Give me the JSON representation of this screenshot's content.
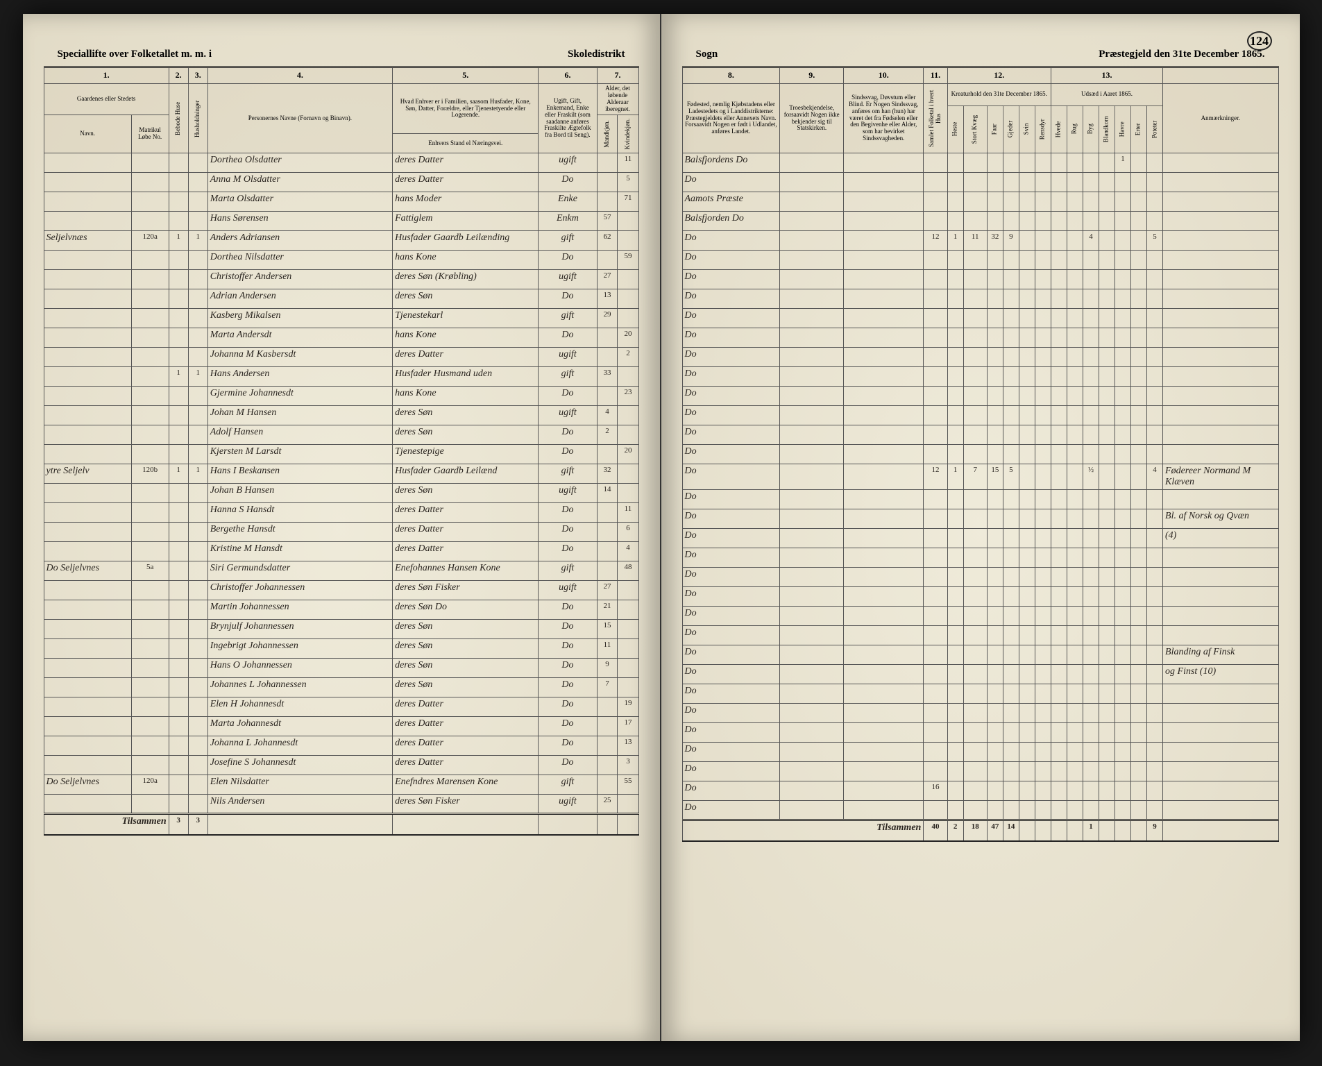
{
  "pageNumber": "124",
  "header": {
    "left1": "Speciallifte over Folketallet m. m. i",
    "left2": "Skoledistrikt",
    "right1": "Sogn",
    "right2": "Præstegjeld den 31te December 1865."
  },
  "leftColumns": {
    "numbers": [
      "1.",
      "2.",
      "3.",
      "4.",
      "5.",
      "6.",
      "7."
    ],
    "labels": {
      "c1": "Gaardenes eller Stedets",
      "c1b": "Navn.",
      "c1c": "Matrikul Løbe No.",
      "c2": "Bebode Huse",
      "c3": "Husholdninger",
      "c4": "Personernes Navne (Fornavn og Binavn).",
      "c5a": "Hvad Enhver er i Familien, saasom Husfader, Kone, Søn, Datter, Forældre, eller Tjenestetyende eller Logerende.",
      "c5b": "Enhvers Stand el Næringsvei.",
      "c6": "Ugift, Gift, Enkemand, Enke eller Fraskilt (som saadanne anføres Fraskilte Ægtefolk fra Bord til Seng).",
      "c7": "Alder, det løbende Alderaar iberegnet.",
      "c7a": "Mandkjøn.",
      "c7b": "Kvindekjøn."
    }
  },
  "rightColumns": {
    "numbers": [
      "8.",
      "9.",
      "10.",
      "11.",
      "12.",
      "13."
    ],
    "labels": {
      "c8": "Fødested, nemlig Kjøbstadens eller Ladestedets og i Landdistrikterne: Præstegjeldets eller Annexets Navn. Forsaavidt Nogen er født i Udlandet, anføres Landet.",
      "c9": "Troesbekjendelse, forsaavidt Nogen ikke bekjender sig til Statskirken.",
      "c10": "Sindssvag, Døvstum eller Blind. Er Nogen Sindssvag, anføres om han (hun) har været det fra Fødselen eller den Begivenhe eller Alder, som har bevirket Sindssvagheden.",
      "c11": "Samlet Folketal i hvert Hus",
      "c12": "Kreaturhold den 31te December 1865.",
      "c12s": [
        "Heste",
        "Stort Kvæg",
        "Faar",
        "Gjeder",
        "Svin",
        "Rensdyr"
      ],
      "c13": "Udsæd i Aaret 1865.",
      "c13s": [
        "Hvede",
        "Rug",
        "Byg",
        "Blandkorn",
        "Havre",
        "Erter",
        "Poteter"
      ],
      "c14": "Anmærkninger."
    }
  },
  "rows": [
    {
      "farm": "",
      "mn": "",
      "bh": "",
      "hh": "",
      "name": "Dorthea Olsdatter",
      "rel": "deres Datter",
      "ms": "ugift",
      "mk": "",
      "kk": "11",
      "birth": "Balsfjordens Do",
      "c11": "",
      "kr": [
        "",
        "",
        "",
        "",
        "",
        ""
      ],
      "ud": [
        "",
        "",
        "",
        "",
        "1",
        "",
        ""
      ],
      "rem": ""
    },
    {
      "farm": "",
      "mn": "",
      "bh": "",
      "hh": "",
      "name": "Anna M Olsdatter",
      "rel": "deres Datter",
      "ms": "Do",
      "mk": "",
      "kk": "5",
      "birth": "Do",
      "c11": "",
      "kr": [
        "",
        "",
        "",
        "",
        "",
        ""
      ],
      "ud": [
        "",
        "",
        "",
        "",
        "",
        "",
        ""
      ],
      "rem": ""
    },
    {
      "farm": "",
      "mn": "",
      "bh": "",
      "hh": "",
      "name": "Marta Olsdatter",
      "rel": "hans Moder",
      "ms": "Enke",
      "mk": "",
      "kk": "71",
      "birth": "Aamots Præste",
      "c11": "",
      "kr": [
        "",
        "",
        "",
        "",
        "",
        ""
      ],
      "ud": [
        "",
        "",
        "",
        "",
        "",
        "",
        ""
      ],
      "rem": ""
    },
    {
      "farm": "",
      "mn": "",
      "bh": "",
      "hh": "",
      "name": "Hans Sørensen",
      "rel": "Fattiglem",
      "ms": "Enkm",
      "mk": "57",
      "kk": "",
      "birth": "Balsfjorden Do",
      "c11": "",
      "kr": [
        "",
        "",
        "",
        "",
        "",
        ""
      ],
      "ud": [
        "",
        "",
        "",
        "",
        "",
        "",
        ""
      ],
      "rem": ""
    },
    {
      "farm": "Seljelvnæs",
      "mn": "120a",
      "bh": "1",
      "hh": "1",
      "name": "Anders Adriansen",
      "rel": "Husfader Gaardb Leilænding",
      "ms": "gift",
      "mk": "62",
      "kk": "",
      "birth": "Do",
      "c11": "12",
      "kr": [
        "1",
        "11",
        "32",
        "9",
        "",
        ""
      ],
      "ud": [
        "",
        "",
        "4",
        "",
        "",
        "",
        "5"
      ],
      "rem": ""
    },
    {
      "farm": "",
      "mn": "",
      "bh": "",
      "hh": "",
      "name": "Dorthea Nilsdatter",
      "rel": "hans Kone",
      "ms": "Do",
      "mk": "",
      "kk": "59",
      "birth": "Do",
      "c11": "",
      "kr": [
        "",
        "",
        "",
        "",
        "",
        ""
      ],
      "ud": [
        "",
        "",
        "",
        "",
        "",
        "",
        ""
      ],
      "rem": ""
    },
    {
      "farm": "",
      "mn": "",
      "bh": "",
      "hh": "",
      "name": "Christoffer Andersen",
      "rel": "deres Søn (Krøbling)",
      "ms": "ugift",
      "mk": "27",
      "kk": "",
      "birth": "Do",
      "c11": "",
      "kr": [
        "",
        "",
        "",
        "",
        "",
        ""
      ],
      "ud": [
        "",
        "",
        "",
        "",
        "",
        "",
        ""
      ],
      "rem": ""
    },
    {
      "farm": "",
      "mn": "",
      "bh": "",
      "hh": "",
      "name": "Adrian Andersen",
      "rel": "deres Søn",
      "ms": "Do",
      "mk": "13",
      "kk": "",
      "birth": "Do",
      "c11": "",
      "kr": [
        "",
        "",
        "",
        "",
        "",
        ""
      ],
      "ud": [
        "",
        "",
        "",
        "",
        "",
        "",
        ""
      ],
      "rem": ""
    },
    {
      "farm": "",
      "mn": "",
      "bh": "",
      "hh": "",
      "name": "Kasberg Mikalsen",
      "rel": "Tjenestekarl",
      "ms": "gift",
      "mk": "29",
      "kk": "",
      "birth": "Do",
      "c11": "",
      "kr": [
        "",
        "",
        "",
        "",
        "",
        ""
      ],
      "ud": [
        "",
        "",
        "",
        "",
        "",
        "",
        ""
      ],
      "rem": ""
    },
    {
      "farm": "",
      "mn": "",
      "bh": "",
      "hh": "",
      "name": "Marta Andersdt",
      "rel": "hans Kone",
      "ms": "Do",
      "mk": "",
      "kk": "20",
      "birth": "Do",
      "c11": "",
      "kr": [
        "",
        "",
        "",
        "",
        "",
        ""
      ],
      "ud": [
        "",
        "",
        "",
        "",
        "",
        "",
        ""
      ],
      "rem": ""
    },
    {
      "farm": "",
      "mn": "",
      "bh": "",
      "hh": "",
      "name": "Johanna M Kasbersdt",
      "rel": "deres Datter",
      "ms": "ugift",
      "mk": "",
      "kk": "2",
      "birth": "Do",
      "c11": "",
      "kr": [
        "",
        "",
        "",
        "",
        "",
        ""
      ],
      "ud": [
        "",
        "",
        "",
        "",
        "",
        "",
        ""
      ],
      "rem": ""
    },
    {
      "farm": "",
      "mn": "",
      "bh": "1",
      "hh": "1",
      "name": "Hans Andersen",
      "rel": "Husfader Husmand uden",
      "ms": "gift",
      "mk": "33",
      "kk": "",
      "birth": "Do",
      "c11": "",
      "kr": [
        "",
        "",
        "",
        "",
        "",
        ""
      ],
      "ud": [
        "",
        "",
        "",
        "",
        "",
        "",
        ""
      ],
      "rem": ""
    },
    {
      "farm": "",
      "mn": "",
      "bh": "",
      "hh": "",
      "name": "Gjermine Johannesdt",
      "rel": "hans Kone",
      "ms": "Do",
      "mk": "",
      "kk": "23",
      "birth": "Do",
      "c11": "",
      "kr": [
        "",
        "",
        "",
        "",
        "",
        ""
      ],
      "ud": [
        "",
        "",
        "",
        "",
        "",
        "",
        ""
      ],
      "rem": ""
    },
    {
      "farm": "",
      "mn": "",
      "bh": "",
      "hh": "",
      "name": "Johan M Hansen",
      "rel": "deres Søn",
      "ms": "ugift",
      "mk": "4",
      "kk": "",
      "birth": "Do",
      "c11": "",
      "kr": [
        "",
        "",
        "",
        "",
        "",
        ""
      ],
      "ud": [
        "",
        "",
        "",
        "",
        "",
        "",
        ""
      ],
      "rem": ""
    },
    {
      "farm": "",
      "mn": "",
      "bh": "",
      "hh": "",
      "name": "Adolf Hansen",
      "rel": "deres Søn",
      "ms": "Do",
      "mk": "2",
      "kk": "",
      "birth": "Do",
      "c11": "",
      "kr": [
        "",
        "",
        "",
        "",
        "",
        ""
      ],
      "ud": [
        "",
        "",
        "",
        "",
        "",
        "",
        ""
      ],
      "rem": ""
    },
    {
      "farm": "",
      "mn": "",
      "bh": "",
      "hh": "",
      "name": "Kjersten M Larsdt",
      "rel": "Tjenestepige",
      "ms": "Do",
      "mk": "",
      "kk": "20",
      "birth": "Do",
      "c11": "",
      "kr": [
        "",
        "",
        "",
        "",
        "",
        ""
      ],
      "ud": [
        "",
        "",
        "",
        "",
        "",
        "",
        ""
      ],
      "rem": ""
    },
    {
      "farm": "ytre Seljelv",
      "mn": "120b",
      "bh": "1",
      "hh": "1",
      "name": "Hans I Beskansen",
      "rel": "Husfader Gaardb Leilænd",
      "ms": "gift",
      "mk": "32",
      "kk": "",
      "birth": "Do",
      "c11": "12",
      "kr": [
        "1",
        "7",
        "15",
        "5",
        "",
        ""
      ],
      "ud": [
        "",
        "",
        "½",
        "",
        "",
        "",
        "4"
      ],
      "rem": "Fødereer Normand M Klæven"
    },
    {
      "farm": "",
      "mn": "",
      "bh": "",
      "hh": "",
      "name": "Johan B Hansen",
      "rel": "deres Søn",
      "ms": "ugift",
      "mk": "14",
      "kk": "",
      "birth": "Do",
      "c11": "",
      "kr": [
        "",
        "",
        "",
        "",
        "",
        ""
      ],
      "ud": [
        "",
        "",
        "",
        "",
        "",
        "",
        ""
      ],
      "rem": ""
    },
    {
      "farm": "",
      "mn": "",
      "bh": "",
      "hh": "",
      "name": "Hanna S Hansdt",
      "rel": "deres Datter",
      "ms": "Do",
      "mk": "",
      "kk": "11",
      "birth": "Do",
      "c11": "",
      "kr": [
        "",
        "",
        "",
        "",
        "",
        ""
      ],
      "ud": [
        "",
        "",
        "",
        "",
        "",
        "",
        ""
      ],
      "rem": "Bl. af Norsk og Qvæn"
    },
    {
      "farm": "",
      "mn": "",
      "bh": "",
      "hh": "",
      "name": "Bergethe Hansdt",
      "rel": "deres Datter",
      "ms": "Do",
      "mk": "",
      "kk": "6",
      "birth": "Do",
      "c11": "",
      "kr": [
        "",
        "",
        "",
        "",
        "",
        ""
      ],
      "ud": [
        "",
        "",
        "",
        "",
        "",
        "",
        ""
      ],
      "rem": "(4)"
    },
    {
      "farm": "",
      "mn": "",
      "bh": "",
      "hh": "",
      "name": "Kristine M Hansdt",
      "rel": "deres Datter",
      "ms": "Do",
      "mk": "",
      "kk": "4",
      "birth": "Do",
      "c11": "",
      "kr": [
        "",
        "",
        "",
        "",
        "",
        ""
      ],
      "ud": [
        "",
        "",
        "",
        "",
        "",
        "",
        ""
      ],
      "rem": ""
    },
    {
      "farm": "Do Seljelvnes",
      "mn": "5a",
      "bh": "",
      "hh": "",
      "name": "Siri Germundsdatter",
      "rel": "Enefohannes Hansen Kone",
      "ms": "gift",
      "mk": "",
      "kk": "48",
      "birth": "Do",
      "c11": "",
      "kr": [
        "",
        "",
        "",
        "",
        "",
        ""
      ],
      "ud": [
        "",
        "",
        "",
        "",
        "",
        "",
        ""
      ],
      "rem": ""
    },
    {
      "farm": "",
      "mn": "",
      "bh": "",
      "hh": "",
      "name": "Christoffer Johannessen",
      "rel": "deres Søn Fisker",
      "ms": "ugift",
      "mk": "27",
      "kk": "",
      "birth": "Do",
      "c11": "",
      "kr": [
        "",
        "",
        "",
        "",
        "",
        ""
      ],
      "ud": [
        "",
        "",
        "",
        "",
        "",
        "",
        ""
      ],
      "rem": ""
    },
    {
      "farm": "",
      "mn": "",
      "bh": "",
      "hh": "",
      "name": "Martin Johannessen",
      "rel": "deres Søn Do",
      "ms": "Do",
      "mk": "21",
      "kk": "",
      "birth": "Do",
      "c11": "",
      "kr": [
        "",
        "",
        "",
        "",
        "",
        ""
      ],
      "ud": [
        "",
        "",
        "",
        "",
        "",
        "",
        ""
      ],
      "rem": ""
    },
    {
      "farm": "",
      "mn": "",
      "bh": "",
      "hh": "",
      "name": "Brynjulf Johannessen",
      "rel": "deres Søn",
      "ms": "Do",
      "mk": "15",
      "kk": "",
      "birth": "Do",
      "c11": "",
      "kr": [
        "",
        "",
        "",
        "",
        "",
        ""
      ],
      "ud": [
        "",
        "",
        "",
        "",
        "",
        "",
        ""
      ],
      "rem": ""
    },
    {
      "farm": "",
      "mn": "",
      "bh": "",
      "hh": "",
      "name": "Ingebrigt Johannessen",
      "rel": "deres Søn",
      "ms": "Do",
      "mk": "11",
      "kk": "",
      "birth": "Do",
      "c11": "",
      "kr": [
        "",
        "",
        "",
        "",
        "",
        ""
      ],
      "ud": [
        "",
        "",
        "",
        "",
        "",
        "",
        ""
      ],
      "rem": "Blanding af Finsk"
    },
    {
      "farm": "",
      "mn": "",
      "bh": "",
      "hh": "",
      "name": "Hans O Johannessen",
      "rel": "deres Søn",
      "ms": "Do",
      "mk": "9",
      "kk": "",
      "birth": "Do",
      "c11": "",
      "kr": [
        "",
        "",
        "",
        "",
        "",
        ""
      ],
      "ud": [
        "",
        "",
        "",
        "",
        "",
        "",
        ""
      ],
      "rem": "og Finst (10)"
    },
    {
      "farm": "",
      "mn": "",
      "bh": "",
      "hh": "",
      "name": "Johannes L Johannessen",
      "rel": "deres Søn",
      "ms": "Do",
      "mk": "7",
      "kk": "",
      "birth": "Do",
      "c11": "",
      "kr": [
        "",
        "",
        "",
        "",
        "",
        ""
      ],
      "ud": [
        "",
        "",
        "",
        "",
        "",
        "",
        ""
      ],
      "rem": ""
    },
    {
      "farm": "",
      "mn": "",
      "bh": "",
      "hh": "",
      "name": "Elen H Johannesdt",
      "rel": "deres Datter",
      "ms": "Do",
      "mk": "",
      "kk": "19",
      "birth": "Do",
      "c11": "",
      "kr": [
        "",
        "",
        "",
        "",
        "",
        ""
      ],
      "ud": [
        "",
        "",
        "",
        "",
        "",
        "",
        ""
      ],
      "rem": ""
    },
    {
      "farm": "",
      "mn": "",
      "bh": "",
      "hh": "",
      "name": "Marta Johannesdt",
      "rel": "deres Datter",
      "ms": "Do",
      "mk": "",
      "kk": "17",
      "birth": "Do",
      "c11": "",
      "kr": [
        "",
        "",
        "",
        "",
        "",
        ""
      ],
      "ud": [
        "",
        "",
        "",
        "",
        "",
        "",
        ""
      ],
      "rem": ""
    },
    {
      "farm": "",
      "mn": "",
      "bh": "",
      "hh": "",
      "name": "Johanna L Johannesdt",
      "rel": "deres Datter",
      "ms": "Do",
      "mk": "",
      "kk": "13",
      "birth": "Do",
      "c11": "",
      "kr": [
        "",
        "",
        "",
        "",
        "",
        ""
      ],
      "ud": [
        "",
        "",
        "",
        "",
        "",
        "",
        ""
      ],
      "rem": ""
    },
    {
      "farm": "",
      "mn": "",
      "bh": "",
      "hh": "",
      "name": "Josefine S Johannesdt",
      "rel": "deres Datter",
      "ms": "Do",
      "mk": "",
      "kk": "3",
      "birth": "Do",
      "c11": "",
      "kr": [
        "",
        "",
        "",
        "",
        "",
        ""
      ],
      "ud": [
        "",
        "",
        "",
        "",
        "",
        "",
        ""
      ],
      "rem": ""
    },
    {
      "farm": "Do Seljelvnes",
      "mn": "120a",
      "bh": "",
      "hh": "",
      "name": "Elen Nilsdatter",
      "rel": "Enefndres Marensen Kone",
      "ms": "gift",
      "mk": "",
      "kk": "55",
      "birth": "Do",
      "c11": "16",
      "kr": [
        "",
        "",
        "",
        "",
        "",
        ""
      ],
      "ud": [
        "",
        "",
        "",
        "",
        "",
        "",
        ""
      ],
      "rem": ""
    },
    {
      "farm": "",
      "mn": "",
      "bh": "",
      "hh": "",
      "name": "Nils Andersen",
      "rel": "deres Søn Fisker",
      "ms": "ugift",
      "mk": "25",
      "kk": "",
      "birth": "Do",
      "c11": "",
      "kr": [
        "",
        "",
        "",
        "",
        "",
        ""
      ],
      "ud": [
        "",
        "",
        "",
        "",
        "",
        "",
        ""
      ],
      "rem": ""
    }
  ],
  "footer": {
    "leftLabel": "Tilsammen",
    "leftSum": [
      "3",
      "3"
    ],
    "rightLabel": "Tilsammen",
    "rightSums": [
      "40",
      "2",
      "18",
      "47",
      "14",
      "",
      "",
      "",
      "",
      "1",
      "",
      "",
      "",
      "9"
    ]
  }
}
